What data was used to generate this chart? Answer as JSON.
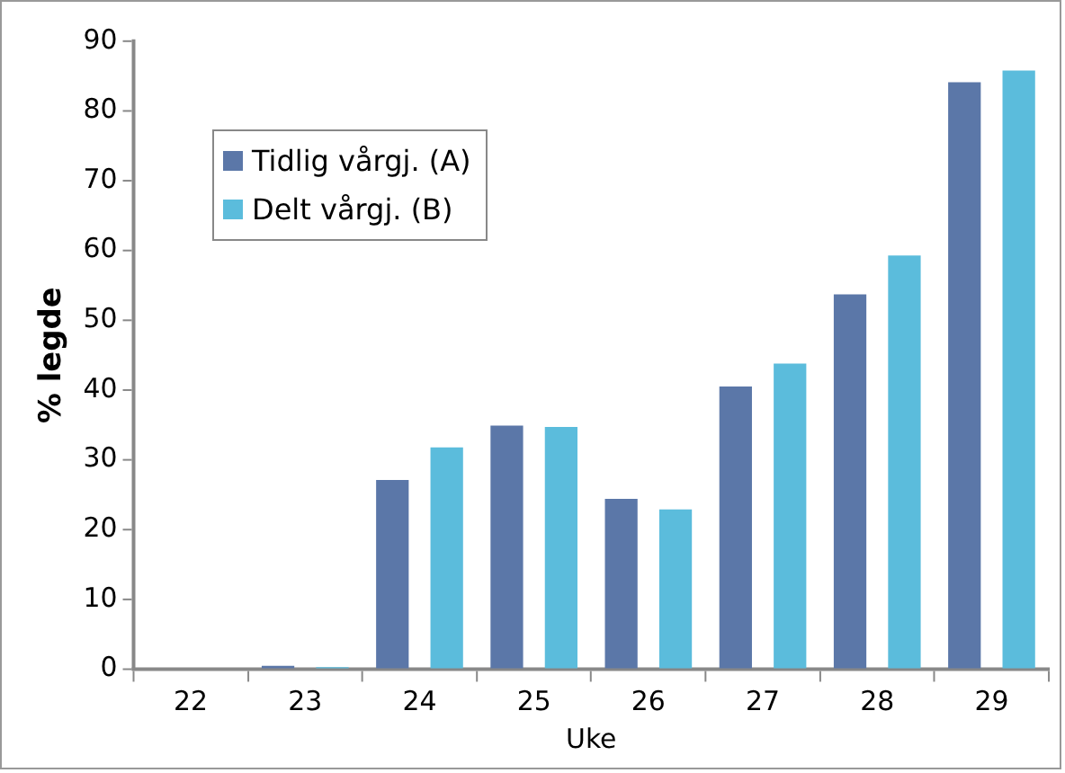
{
  "chart_data": {
    "type": "bar",
    "xlabel": "Uke",
    "ylabel": "% legde",
    "categories": [
      "22",
      "23",
      "24",
      "25",
      "26",
      "27",
      "28",
      "29"
    ],
    "series": [
      {
        "name": "Tidlig vårgj. (A)",
        "color": "#5b77a8",
        "values": [
          0,
          0.5,
          27.1,
          34.9,
          24.4,
          40.5,
          53.7,
          84.1
        ]
      },
      {
        "name": "Delt vårgj. (B)",
        "color": "#5bbcdc",
        "values": [
          0,
          0.3,
          31.8,
          34.7,
          22.9,
          43.8,
          59.3,
          85.8
        ]
      }
    ],
    "ylim": [
      0,
      90
    ],
    "yticks": [
      0,
      10,
      20,
      30,
      40,
      50,
      60,
      70,
      80,
      90
    ],
    "grid": false,
    "legend": "top left"
  }
}
